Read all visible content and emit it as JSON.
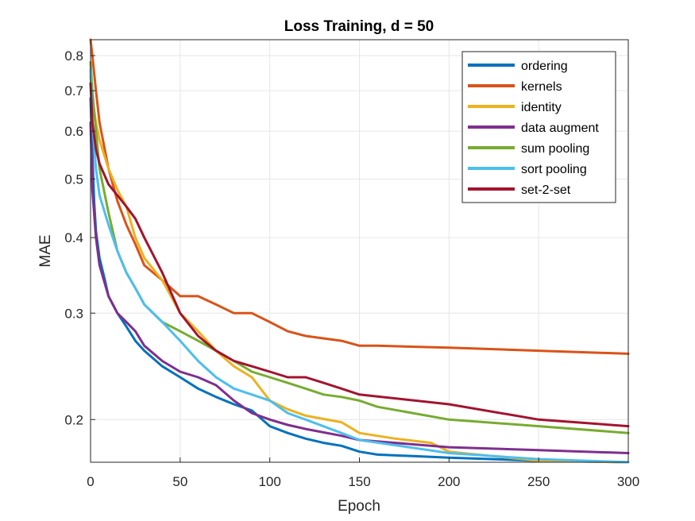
{
  "chart_data": {
    "type": "line",
    "title": "Loss Training, d = 50",
    "xlabel": "Epoch",
    "ylabel": "MAE",
    "xlim": [
      0,
      300
    ],
    "ylim": [
      0.17,
      0.85
    ],
    "yscale": "log",
    "grid": true,
    "legend_position": "top-right",
    "xticks": [
      "0",
      "50",
      "100",
      "150",
      "200",
      "250",
      "300"
    ],
    "yticks": [
      "0.2",
      "0.3",
      "0.4",
      "0.5",
      "0.6",
      "0.7",
      "0.8"
    ],
    "series": [
      {
        "name": "ordering",
        "color": "#0072BD",
        "x": [
          0,
          1,
          2,
          3,
          5,
          8,
          10,
          15,
          20,
          25,
          30,
          40,
          50,
          60,
          70,
          80,
          90,
          100,
          110,
          120,
          130,
          140,
          150,
          160,
          180,
          200,
          250,
          300
        ],
        "y": [
          0.68,
          0.55,
          0.46,
          0.41,
          0.37,
          0.34,
          0.32,
          0.3,
          0.285,
          0.27,
          0.26,
          0.245,
          0.235,
          0.225,
          0.218,
          0.212,
          0.207,
          0.195,
          0.19,
          0.186,
          0.183,
          0.181,
          0.177,
          0.175,
          0.174,
          0.173,
          0.171,
          0.169
        ]
      },
      {
        "name": "kernels",
        "color": "#D95319",
        "x": [
          0,
          1,
          3,
          5,
          10,
          15,
          20,
          25,
          30,
          40,
          50,
          60,
          70,
          80,
          90,
          100,
          110,
          120,
          140,
          150,
          160,
          200,
          250,
          300
        ],
        "y": [
          0.85,
          0.8,
          0.7,
          0.62,
          0.52,
          0.46,
          0.42,
          0.39,
          0.36,
          0.34,
          0.32,
          0.32,
          0.31,
          0.3,
          0.3,
          0.29,
          0.28,
          0.275,
          0.27,
          0.265,
          0.265,
          0.263,
          0.26,
          0.257
        ]
      },
      {
        "name": "identity",
        "color": "#EDB120",
        "x": [
          0,
          1,
          3,
          5,
          10,
          15,
          20,
          25,
          30,
          40,
          50,
          60,
          70,
          80,
          90,
          100,
          110,
          120,
          140,
          150,
          170,
          190,
          200,
          250,
          300
        ],
        "y": [
          0.74,
          0.68,
          0.62,
          0.58,
          0.52,
          0.48,
          0.45,
          0.4,
          0.37,
          0.34,
          0.3,
          0.28,
          0.26,
          0.245,
          0.235,
          0.215,
          0.208,
          0.203,
          0.198,
          0.19,
          0.186,
          0.183,
          0.177,
          0.171,
          0.166
        ]
      },
      {
        "name": "data augment",
        "color": "#7E2F8E",
        "x": [
          0,
          1,
          3,
          5,
          10,
          15,
          20,
          25,
          30,
          40,
          50,
          60,
          70,
          80,
          90,
          100,
          110,
          120,
          140,
          150,
          200,
          250,
          300
        ],
        "y": [
          0.62,
          0.48,
          0.4,
          0.36,
          0.32,
          0.3,
          0.29,
          0.28,
          0.265,
          0.25,
          0.24,
          0.235,
          0.228,
          0.215,
          0.205,
          0.2,
          0.196,
          0.193,
          0.188,
          0.185,
          0.18,
          0.178,
          0.176
        ]
      },
      {
        "name": "sum pooling",
        "color": "#77AC30",
        "x": [
          0,
          1,
          3,
          5,
          10,
          15,
          20,
          25,
          30,
          40,
          50,
          60,
          70,
          80,
          90,
          100,
          110,
          120,
          130,
          140,
          150,
          160,
          200,
          250,
          300
        ],
        "y": [
          0.78,
          0.7,
          0.6,
          0.52,
          0.44,
          0.38,
          0.35,
          0.33,
          0.31,
          0.29,
          0.28,
          0.27,
          0.26,
          0.25,
          0.24,
          0.235,
          0.23,
          0.225,
          0.22,
          0.218,
          0.215,
          0.21,
          0.2,
          0.195,
          0.19
        ]
      },
      {
        "name": "sort pooling",
        "color": "#4DBEEE",
        "x": [
          0,
          1,
          3,
          5,
          10,
          15,
          20,
          25,
          30,
          40,
          50,
          60,
          70,
          80,
          90,
          100,
          110,
          120,
          140,
          150,
          200,
          250,
          300
        ],
        "y": [
          0.76,
          0.62,
          0.52,
          0.47,
          0.42,
          0.38,
          0.35,
          0.33,
          0.31,
          0.29,
          0.27,
          0.25,
          0.235,
          0.225,
          0.22,
          0.215,
          0.205,
          0.2,
          0.19,
          0.185,
          0.176,
          0.172,
          0.168
        ]
      },
      {
        "name": "set-2-set",
        "color": "#A2142F",
        "x": [
          0,
          1,
          3,
          5,
          10,
          15,
          20,
          25,
          30,
          40,
          50,
          60,
          70,
          80,
          90,
          100,
          110,
          120,
          130,
          140,
          150,
          200,
          250,
          300
        ],
        "y": [
          0.72,
          0.62,
          0.56,
          0.53,
          0.49,
          0.47,
          0.45,
          0.43,
          0.4,
          0.35,
          0.3,
          0.275,
          0.26,
          0.25,
          0.245,
          0.24,
          0.235,
          0.235,
          0.23,
          0.225,
          0.22,
          0.212,
          0.2,
          0.195
        ]
      }
    ]
  }
}
